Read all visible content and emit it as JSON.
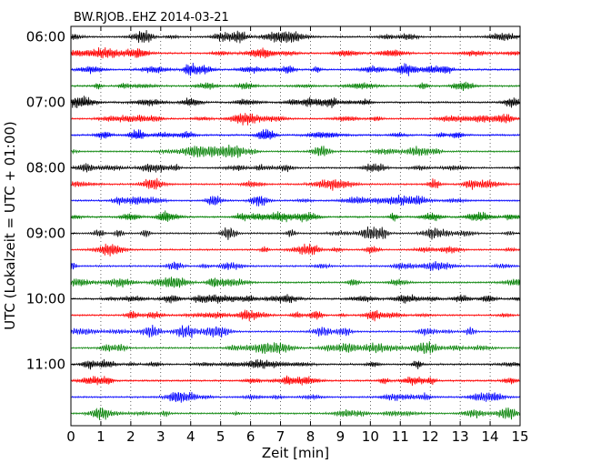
{
  "chart_data": {
    "type": "line",
    "title": "BW.RJOB..EHZ 2014-03-21",
    "xlabel": "Zeit  [min]",
    "ylabel": "UTC (Lokalzeit = UTC + 01:00)",
    "xlim": [
      0,
      15
    ],
    "x_ticks": [
      "0",
      "1",
      "2",
      "3",
      "4",
      "5",
      "6",
      "7",
      "8",
      "9",
      "10",
      "11",
      "12",
      "13",
      "14",
      "15"
    ],
    "y_ticks": [
      "06:00",
      "07:00",
      "08:00",
      "09:00",
      "10:00",
      "11:00"
    ],
    "grid": "vertical dotted at each minute",
    "trace_interval_min": 15,
    "trace_count": 24,
    "trace_start": "06:00",
    "trace_colors": [
      "#000000",
      "#ff0000",
      "#0000ff",
      "#008000"
    ]
  }
}
